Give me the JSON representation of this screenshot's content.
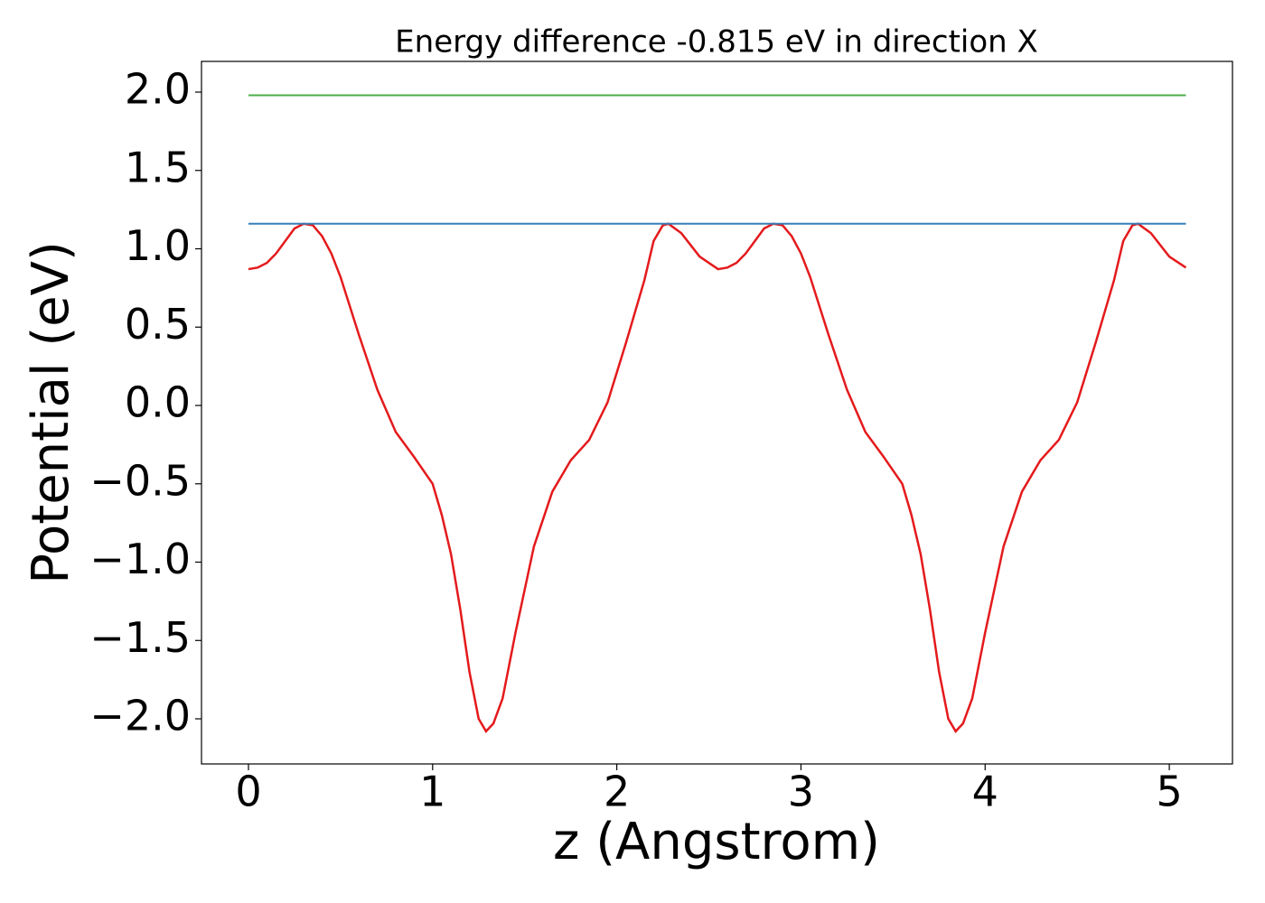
{
  "chart_data": {
    "type": "line",
    "title": "Energy difference -0.815 eV in direction X",
    "xlabel": "z (Angstrom)",
    "ylabel": "Potential (eV)",
    "xlim": [
      -0.255,
      5.343
    ],
    "ylim": [
      -2.288,
      2.196
    ],
    "xticks": [
      0,
      1,
      2,
      3,
      4,
      5
    ],
    "yticks": [
      {
        "value": -2,
        "label": "−2.0"
      },
      {
        "value": -1.5,
        "label": "−1.5"
      },
      {
        "value": -1,
        "label": "−1.0"
      },
      {
        "value": -0.5,
        "label": "−0.5"
      },
      {
        "value": 0,
        "label": "0.0"
      },
      0.5,
      {
        "value": 1,
        "label": "1.0"
      },
      1.5,
      {
        "value": 2,
        "label": "2.0"
      }
    ],
    "series": [
      {
        "color": "#e41a1c",
        "x": [
          0,
          0.05,
          0.1,
          0.15,
          0.2,
          0.25,
          0.3,
          0.35,
          0.4,
          0.45,
          0.5,
          0.6,
          0.7,
          0.8,
          0.9,
          1.0,
          1.05,
          1.1,
          1.15,
          1.2,
          1.25,
          1.29,
          1.33,
          1.38,
          1.45,
          1.55,
          1.65,
          1.75,
          1.85,
          1.95,
          2.05,
          2.15,
          2.2,
          2.25,
          2.28,
          2.35,
          2.45,
          2.55,
          2.6,
          2.65,
          2.7,
          2.75,
          2.8,
          2.85,
          2.9,
          2.95,
          3.0,
          3.05,
          3.15,
          3.25,
          3.35,
          3.45,
          3.55,
          3.6,
          3.65,
          3.7,
          3.75,
          3.8,
          3.84,
          3.88,
          3.93,
          4.0,
          4.1,
          4.2,
          4.3,
          4.4,
          4.5,
          4.6,
          4.7,
          4.75,
          4.8,
          4.83,
          4.9,
          5.0,
          5.09
        ],
        "values": [
          0.87,
          0.88,
          0.91,
          0.97,
          1.05,
          1.13,
          1.16,
          1.15,
          1.08,
          0.97,
          0.82,
          0.45,
          0.1,
          -0.17,
          -0.33,
          -0.5,
          -0.7,
          -0.95,
          -1.3,
          -1.7,
          -2.0,
          -2.08,
          -2.03,
          -1.87,
          -1.45,
          -0.9,
          -0.55,
          -0.35,
          -0.22,
          0.02,
          0.4,
          0.8,
          1.05,
          1.15,
          1.16,
          1.1,
          0.95,
          0.87,
          0.88,
          0.91,
          0.97,
          1.05,
          1.13,
          1.16,
          1.15,
          1.08,
          0.97,
          0.82,
          0.45,
          0.1,
          -0.17,
          -0.33,
          -0.5,
          -0.7,
          -0.95,
          -1.3,
          -1.7,
          -2.0,
          -2.08,
          -2.03,
          -1.87,
          -1.45,
          -0.9,
          -0.55,
          -0.35,
          -0.22,
          0.02,
          0.4,
          0.8,
          1.05,
          1.15,
          1.16,
          1.1,
          0.95,
          0.88
        ]
      },
      {
        "color": "#377eb8",
        "x": [
          0,
          5.09
        ],
        "values": [
          1.16,
          1.16
        ]
      },
      {
        "color": "#4daf4a",
        "x": [
          0,
          5.09
        ],
        "values": [
          1.98,
          1.98
        ]
      }
    ]
  }
}
